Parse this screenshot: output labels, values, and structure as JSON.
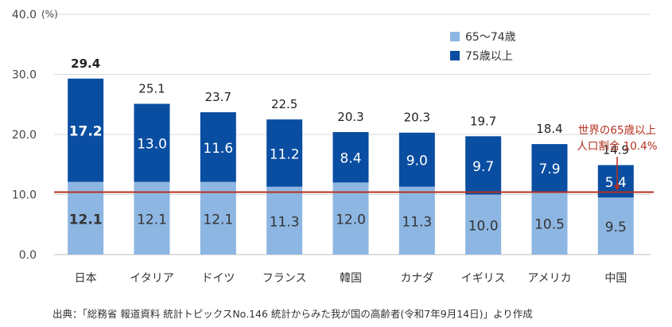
{
  "chart_data": {
    "type": "bar",
    "stacked": true,
    "categories": [
      "日本",
      "イタリア",
      "ドイツ",
      "フランス",
      "韓国",
      "カナダ",
      "イギリス",
      "アメリカ",
      "中国"
    ],
    "series": [
      {
        "name": "65～74歳",
        "color": "#8db6e2",
        "values": [
          12.1,
          12.1,
          12.1,
          11.3,
          12.0,
          11.3,
          10.0,
          10.5,
          9.5
        ],
        "labels": [
          "12.1",
          "12.1",
          "12.1",
          "11.3",
          "12.0",
          "11.3",
          "10.0",
          "10.5",
          "9.5"
        ]
      },
      {
        "name": "75歳以上",
        "color": "#0a4ea2",
        "values": [
          17.2,
          13.0,
          11.6,
          11.2,
          8.4,
          9.0,
          9.7,
          7.9,
          5.4
        ],
        "labels": [
          "17.2",
          "13.0",
          "11.6",
          "11.2",
          "8.4",
          "9.0",
          "9.7",
          "7.9",
          "5.4"
        ]
      }
    ],
    "totals": [
      29.4,
      25.1,
      23.7,
      22.5,
      20.3,
      20.3,
      19.7,
      18.4,
      14.9
    ],
    "total_labels": [
      "29.4",
      "25.1",
      "23.7",
      "22.5",
      "20.3",
      "20.3",
      "19.7",
      "18.4",
      "14.9"
    ],
    "ylim": [
      0,
      40
    ],
    "yticks": [
      "0.0",
      "10.0",
      "20.0",
      "30.0",
      "40.0"
    ],
    "yunit": "(%)",
    "xlabel": "",
    "ylabel": "",
    "legend_position": "top-right",
    "reference_line": {
      "value": 10.4,
      "color": "#b5301f",
      "label_line1": "世界の65歳以上",
      "label_line2": "人口割合 10.4%"
    }
  },
  "source": "出典：「総務省 報道資料 統計トピックスNo.146 統計からみた我が国の高齢者(令和7年9月14日)」より作成"
}
